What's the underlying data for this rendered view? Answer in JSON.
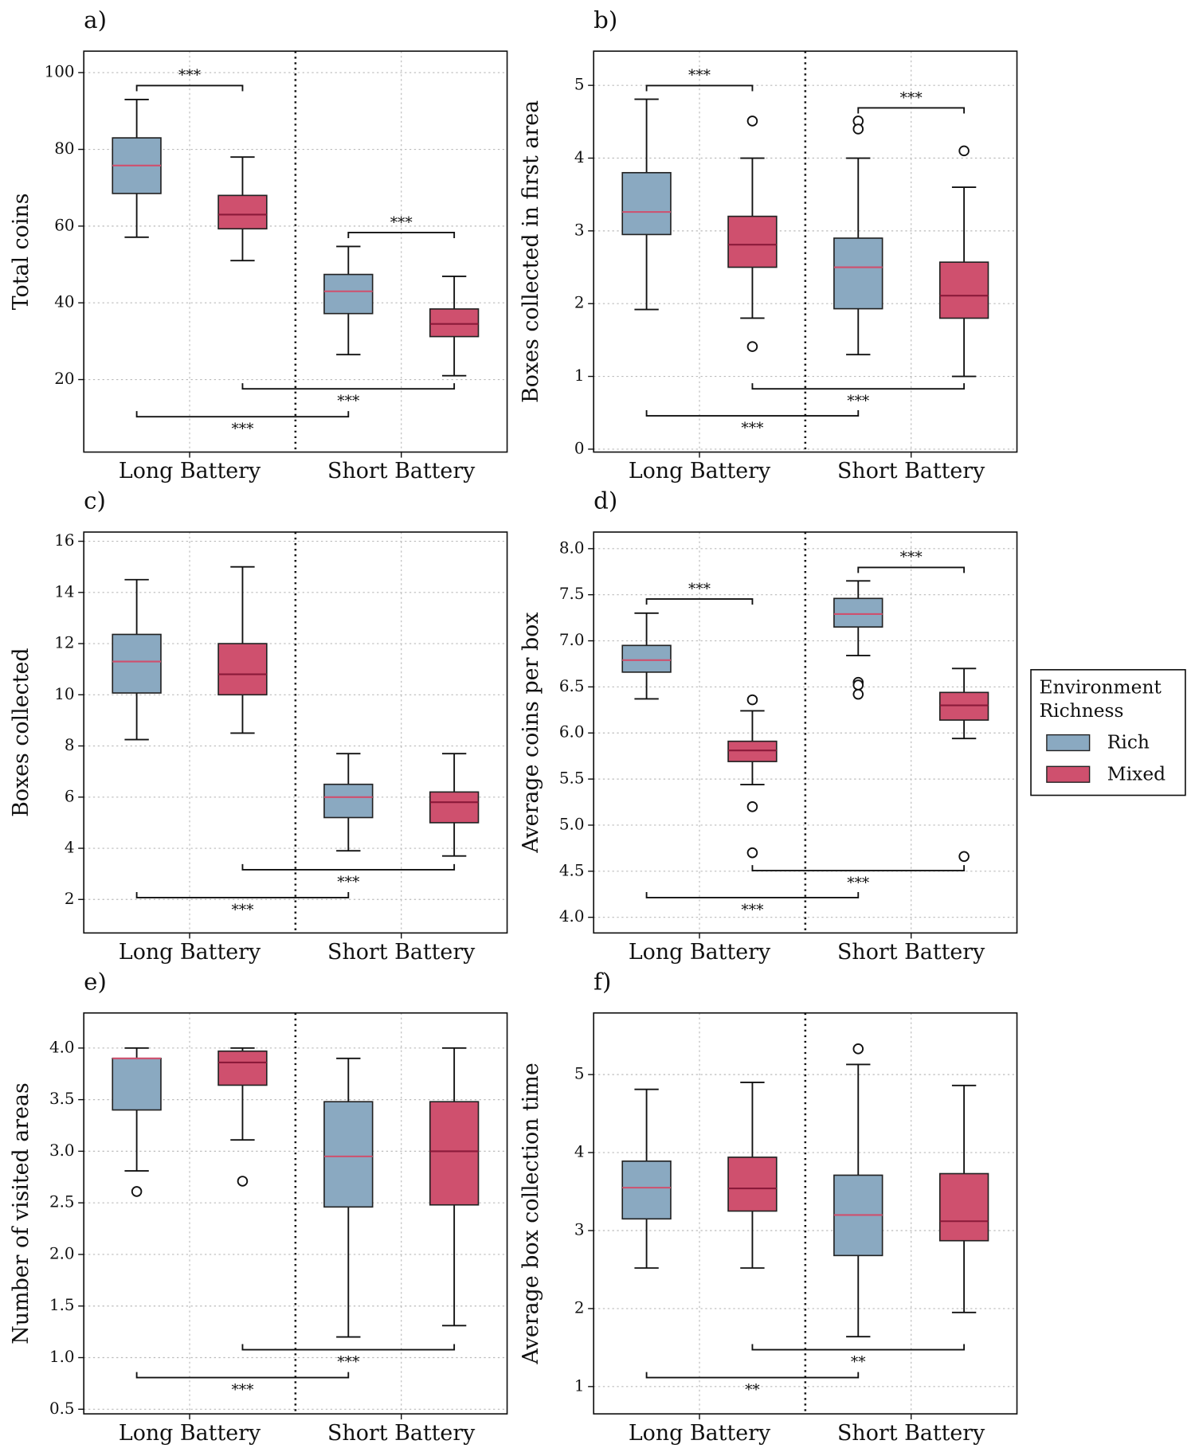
{
  "chart_data": [
    {
      "type": "box",
      "label": "a)",
      "ylabel": "Total coins",
      "categories": [
        "Long Battery",
        "Short Battery"
      ],
      "ylim": [
        1.1,
        105.6
      ],
      "yticks": [
        20,
        40,
        60,
        80,
        100
      ],
      "grid": true,
      "series": [
        {
          "name": "Rich",
          "color": "#8aa9c1",
          "median_color": "#cf506e",
          "values": [
            {
              "min": 57.1,
              "q1": 68.5,
              "median": 75.8,
              "q3": 83,
              "max": 93,
              "outliers": []
            },
            {
              "min": 26.5,
              "q1": 37.2,
              "median": 43,
              "q3": 47.4,
              "max": 54.7,
              "outliers": []
            }
          ]
        },
        {
          "name": "Mixed",
          "color": "#cf506e",
          "median_color": "#8b1a3a",
          "values": [
            {
              "min": 51,
              "q1": 59.3,
              "median": 63,
              "q3": 68,
              "max": 78,
              "outliers": []
            },
            {
              "min": 21,
              "q1": 31.2,
              "median": 34.5,
              "q3": 38.4,
              "max": 46.9,
              "outliers": []
            }
          ]
        }
      ],
      "annotations": [
        "***",
        "***",
        "***",
        "***"
      ]
    },
    {
      "type": "box",
      "label": "b)",
      "ylabel": "Boxes collected in first area",
      "categories": [
        "Long Battery",
        "Short Battery"
      ],
      "ylim": [
        -0.04,
        5.47
      ],
      "yticks": [
        0,
        1,
        2,
        3,
        4,
        5
      ],
      "grid": true,
      "series": [
        {
          "name": "Rich",
          "color": "#8aa9c1",
          "median_color": "#cf506e",
          "values": [
            {
              "min": 1.92,
              "q1": 2.95,
              "median": 3.26,
              "q3": 3.8,
              "max": 4.81,
              "outliers": []
            },
            {
              "min": 1.3,
              "q1": 1.93,
              "median": 2.5,
              "q3": 2.9,
              "max": 4.0,
              "outliers": [
                4.51,
                4.4
              ]
            }
          ]
        },
        {
          "name": "Mixed",
          "color": "#cf506e",
          "median_color": "#8b1a3a",
          "values": [
            {
              "min": 1.8,
              "q1": 2.5,
              "median": 2.81,
              "q3": 3.2,
              "max": 4.0,
              "outliers": [
                4.51,
                1.41
              ]
            },
            {
              "min": 1.0,
              "q1": 1.8,
              "median": 2.11,
              "q3": 2.57,
              "max": 3.6,
              "outliers": [
                4.1
              ]
            }
          ]
        }
      ],
      "annotations": [
        "***",
        "***",
        "***",
        "***"
      ]
    },
    {
      "type": "box",
      "label": "c)",
      "ylabel": "Boxes collected",
      "categories": [
        "Long Battery",
        "Short Battery"
      ],
      "ylim": [
        0.69,
        16.36
      ],
      "yticks": [
        2,
        4,
        6,
        8,
        10,
        12,
        14,
        16
      ],
      "grid": true,
      "series": [
        {
          "name": "Rich",
          "color": "#8aa9c1",
          "median_color": "#cf506e",
          "values": [
            {
              "min": 8.25,
              "q1": 10.07,
              "median": 11.3,
              "q3": 12.36,
              "max": 14.5,
              "outliers": []
            },
            {
              "min": 3.9,
              "q1": 5.2,
              "median": 6.0,
              "q3": 6.5,
              "max": 7.7,
              "outliers": []
            }
          ]
        },
        {
          "name": "Mixed",
          "color": "#cf506e",
          "median_color": "#8b1a3a",
          "values": [
            {
              "min": 8.5,
              "q1": 10.0,
              "median": 10.8,
              "q3": 12.0,
              "max": 15.0,
              "outliers": []
            },
            {
              "min": 3.7,
              "q1": 5.0,
              "median": 5.8,
              "q3": 6.2,
              "max": 7.7,
              "outliers": []
            }
          ]
        }
      ],
      "annotations": [
        "***",
        "***"
      ]
    },
    {
      "type": "box",
      "label": "d)",
      "ylabel": "Average coins per box",
      "categories": [
        "Long Battery",
        "Short Battery"
      ],
      "ylim": [
        3.83,
        8.18
      ],
      "yticks": [
        {
          "value": 4,
          "label": "4.0"
        },
        4.5,
        {
          "value": 5,
          "label": "5.0"
        },
        5.5,
        {
          "value": 6,
          "label": "6.0"
        },
        6.5,
        {
          "value": 7,
          "label": "7.0"
        },
        7.5,
        {
          "value": 8,
          "label": "8.0"
        }
      ],
      "grid": true,
      "series": [
        {
          "name": "Rich",
          "color": "#8aa9c1",
          "median_color": "#cf506e",
          "values": [
            {
              "min": 6.37,
              "q1": 6.66,
              "median": 6.79,
              "q3": 6.95,
              "max": 7.3,
              "outliers": []
            },
            {
              "min": 6.84,
              "q1": 7.15,
              "median": 7.29,
              "q3": 7.46,
              "max": 7.65,
              "outliers": [
                6.55,
                6.52,
                6.42
              ]
            }
          ]
        },
        {
          "name": "Mixed",
          "color": "#cf506e",
          "median_color": "#8b1a3a",
          "values": [
            {
              "min": 5.44,
              "q1": 5.69,
              "median": 5.81,
              "q3": 5.91,
              "max": 6.24,
              "outliers": [
                6.36,
                5.2,
                4.7
              ]
            },
            {
              "min": 5.94,
              "q1": 6.14,
              "median": 6.3,
              "q3": 6.44,
              "max": 6.7,
              "outliers": [
                4.66
              ]
            }
          ]
        }
      ],
      "annotations": [
        "***",
        "***",
        "***",
        "***"
      ],
      "legend_title": [
        "Environment",
        "Richness"
      ],
      "legend": "outside right"
    },
    {
      "type": "box",
      "label": "e)",
      "ylabel": "Number of visited areas",
      "categories": [
        "Long Battery",
        "Short Battery"
      ],
      "ylim": [
        0.455,
        4.34
      ],
      "yticks": [
        0.5,
        {
          "value": 1,
          "label": "1.0"
        },
        1.5,
        {
          "value": 2,
          "label": "2.0"
        },
        2.5,
        {
          "value": 3,
          "label": "3.0"
        },
        3.5,
        {
          "value": 4,
          "label": "4.0"
        }
      ],
      "grid": true,
      "series": [
        {
          "name": "Rich",
          "color": "#8aa9c1",
          "median_color": "#cf506e",
          "values": [
            {
              "min": 2.81,
              "q1": 3.4,
              "median": 3.9,
              "q3": 3.9,
              "max": 4.0,
              "outliers": [
                2.61
              ]
            },
            {
              "min": 1.2,
              "q1": 2.46,
              "median": 2.95,
              "q3": 3.48,
              "max": 3.9,
              "outliers": []
            }
          ]
        },
        {
          "name": "Mixed",
          "color": "#cf506e",
          "median_color": "#8b1a3a",
          "values": [
            {
              "min": 3.11,
              "q1": 3.64,
              "median": 3.86,
              "q3": 3.97,
              "max": 4.0,
              "outliers": [
                2.71
              ]
            },
            {
              "min": 1.31,
              "q1": 2.48,
              "median": 3.0,
              "q3": 3.48,
              "max": 4.0,
              "outliers": []
            }
          ]
        }
      ],
      "annotations": [
        "***",
        "***"
      ]
    },
    {
      "type": "box",
      "label": "f)",
      "ylabel": "Average box collection time",
      "categories": [
        "Long Battery",
        "Short Battery"
      ],
      "ylim": [
        0.65,
        5.79
      ],
      "yticks": [
        1,
        2,
        3,
        4,
        5
      ],
      "grid": true,
      "series": [
        {
          "name": "Rich",
          "color": "#8aa9c1",
          "median_color": "#cf506e",
          "values": [
            {
              "min": 2.52,
              "q1": 3.15,
              "median": 3.55,
              "q3": 3.89,
              "max": 4.81,
              "outliers": []
            },
            {
              "min": 1.64,
              "q1": 2.68,
              "median": 3.2,
              "q3": 3.71,
              "max": 5.13,
              "outliers": [
                5.33
              ]
            }
          ]
        },
        {
          "name": "Mixed",
          "color": "#cf506e",
          "median_color": "#8b1a3a",
          "values": [
            {
              "min": 2.52,
              "q1": 3.25,
              "median": 3.54,
              "q3": 3.94,
              "max": 4.9,
              "outliers": []
            },
            {
              "min": 1.95,
              "q1": 2.87,
              "median": 3.12,
              "q3": 3.73,
              "max": 4.86,
              "outliers": []
            }
          ]
        }
      ],
      "annotations": [
        "**",
        "**"
      ]
    }
  ]
}
